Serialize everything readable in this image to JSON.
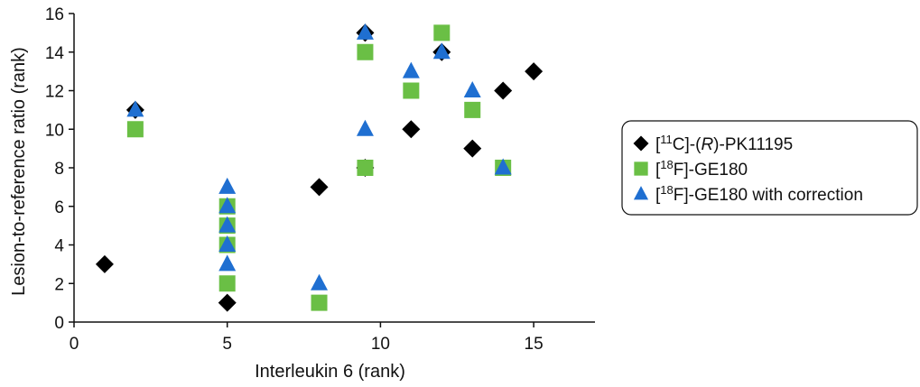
{
  "chart_data": {
    "type": "scatter",
    "title": "",
    "xlabel": "Interleukin 6 (rank)",
    "ylabel": "Lesion-to-reference ratio (rank)",
    "xlim": [
      0,
      17
    ],
    "ylim": [
      0,
      16
    ],
    "xticks": [
      0,
      5,
      10,
      15
    ],
    "yticks": [
      0,
      2,
      4,
      6,
      8,
      10,
      12,
      14,
      16
    ],
    "grid": false,
    "legend_position": "right",
    "series": [
      {
        "name": "[11C]-(R)-PK11195",
        "legend_parts": [
          {
            "text": "[",
            "style": "normal"
          },
          {
            "text": "11",
            "style": "sup"
          },
          {
            "text": "C]-(",
            "style": "normal"
          },
          {
            "text": "R",
            "style": "italic"
          },
          {
            "text": ")-PK11195",
            "style": "normal"
          }
        ],
        "marker": "diamond",
        "color": "#000000",
        "points": [
          [
            1,
            3
          ],
          [
            2,
            11
          ],
          [
            5,
            1
          ],
          [
            8,
            7
          ],
          [
            9.5,
            15
          ],
          [
            9.5,
            8
          ],
          [
            11,
            10
          ],
          [
            12,
            14
          ],
          [
            13,
            9
          ],
          [
            14,
            12
          ],
          [
            15,
            13
          ]
        ]
      },
      {
        "name": "[18F]-GE180",
        "legend_parts": [
          {
            "text": "[",
            "style": "normal"
          },
          {
            "text": "18",
            "style": "sup"
          },
          {
            "text": "F]-GE180",
            "style": "normal"
          }
        ],
        "marker": "square",
        "color": "#6abf45",
        "points": [
          [
            2,
            10
          ],
          [
            5,
            2
          ],
          [
            5,
            4
          ],
          [
            5,
            5
          ],
          [
            5,
            6
          ],
          [
            8,
            1
          ],
          [
            9.5,
            14
          ],
          [
            9.5,
            8
          ],
          [
            11,
            12
          ],
          [
            12,
            15
          ],
          [
            13,
            11
          ],
          [
            14,
            8
          ]
        ]
      },
      {
        "name": "[18F]-GE180 with correction",
        "legend_parts": [
          {
            "text": "[",
            "style": "normal"
          },
          {
            "text": "18",
            "style": "sup"
          },
          {
            "text": "F]-GE180 with correction",
            "style": "normal"
          }
        ],
        "marker": "triangle",
        "color": "#1f6fd1",
        "points": [
          [
            2,
            11
          ],
          [
            5,
            3
          ],
          [
            5,
            4
          ],
          [
            5,
            5
          ],
          [
            5,
            6
          ],
          [
            5,
            7
          ],
          [
            8,
            2
          ],
          [
            9.5,
            15
          ],
          [
            9.5,
            10
          ],
          [
            11,
            13
          ],
          [
            12,
            14
          ],
          [
            13,
            12
          ],
          [
            14,
            8
          ]
        ]
      }
    ]
  }
}
